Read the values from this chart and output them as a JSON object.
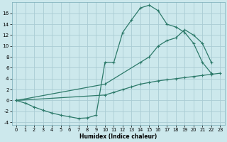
{
  "xlabel": "Humidex (Indice chaleur)",
  "bg_color": "#cce8ec",
  "grid_color": "#aaccd4",
  "line_color": "#2d7a6a",
  "xlim": [
    -0.5,
    23.5
  ],
  "ylim": [
    -4.5,
    18.0
  ],
  "xticks": [
    0,
    1,
    2,
    3,
    4,
    5,
    6,
    7,
    8,
    9,
    10,
    11,
    12,
    13,
    14,
    15,
    16,
    17,
    18,
    19,
    20,
    21,
    22,
    23
  ],
  "yticks": [
    -4,
    -2,
    0,
    2,
    4,
    6,
    8,
    10,
    12,
    14,
    16
  ],
  "series": [
    {
      "x": [
        0,
        1,
        2,
        3,
        4,
        5,
        6,
        7,
        8,
        9,
        10,
        11,
        12,
        13,
        14,
        15,
        16,
        17,
        18,
        19,
        20,
        21,
        22
      ],
      "y": [
        0,
        -0.5,
        -1.2,
        -1.8,
        -2.3,
        -2.7,
        -3.0,
        -3.3,
        -3.2,
        -2.7,
        7.0,
        7.0,
        12.5,
        14.8,
        17.0,
        17.5,
        16.5,
        14.0,
        13.5,
        12.5,
        10.5,
        7.0,
        5.0
      ]
    },
    {
      "x": [
        0,
        10,
        14,
        15,
        16,
        17,
        18,
        19,
        20,
        21,
        22
      ],
      "y": [
        0,
        3,
        7,
        8,
        10,
        11,
        11.5,
        13,
        12,
        10.5,
        7.0
      ]
    },
    {
      "x": [
        0,
        10,
        11,
        12,
        13,
        14,
        15,
        16,
        17,
        18,
        19,
        20,
        21,
        22,
        23
      ],
      "y": [
        0,
        1.0,
        1.5,
        2.0,
        2.5,
        3.0,
        3.3,
        3.6,
        3.8,
        4.0,
        4.2,
        4.4,
        4.6,
        4.8,
        5.0
      ]
    }
  ]
}
